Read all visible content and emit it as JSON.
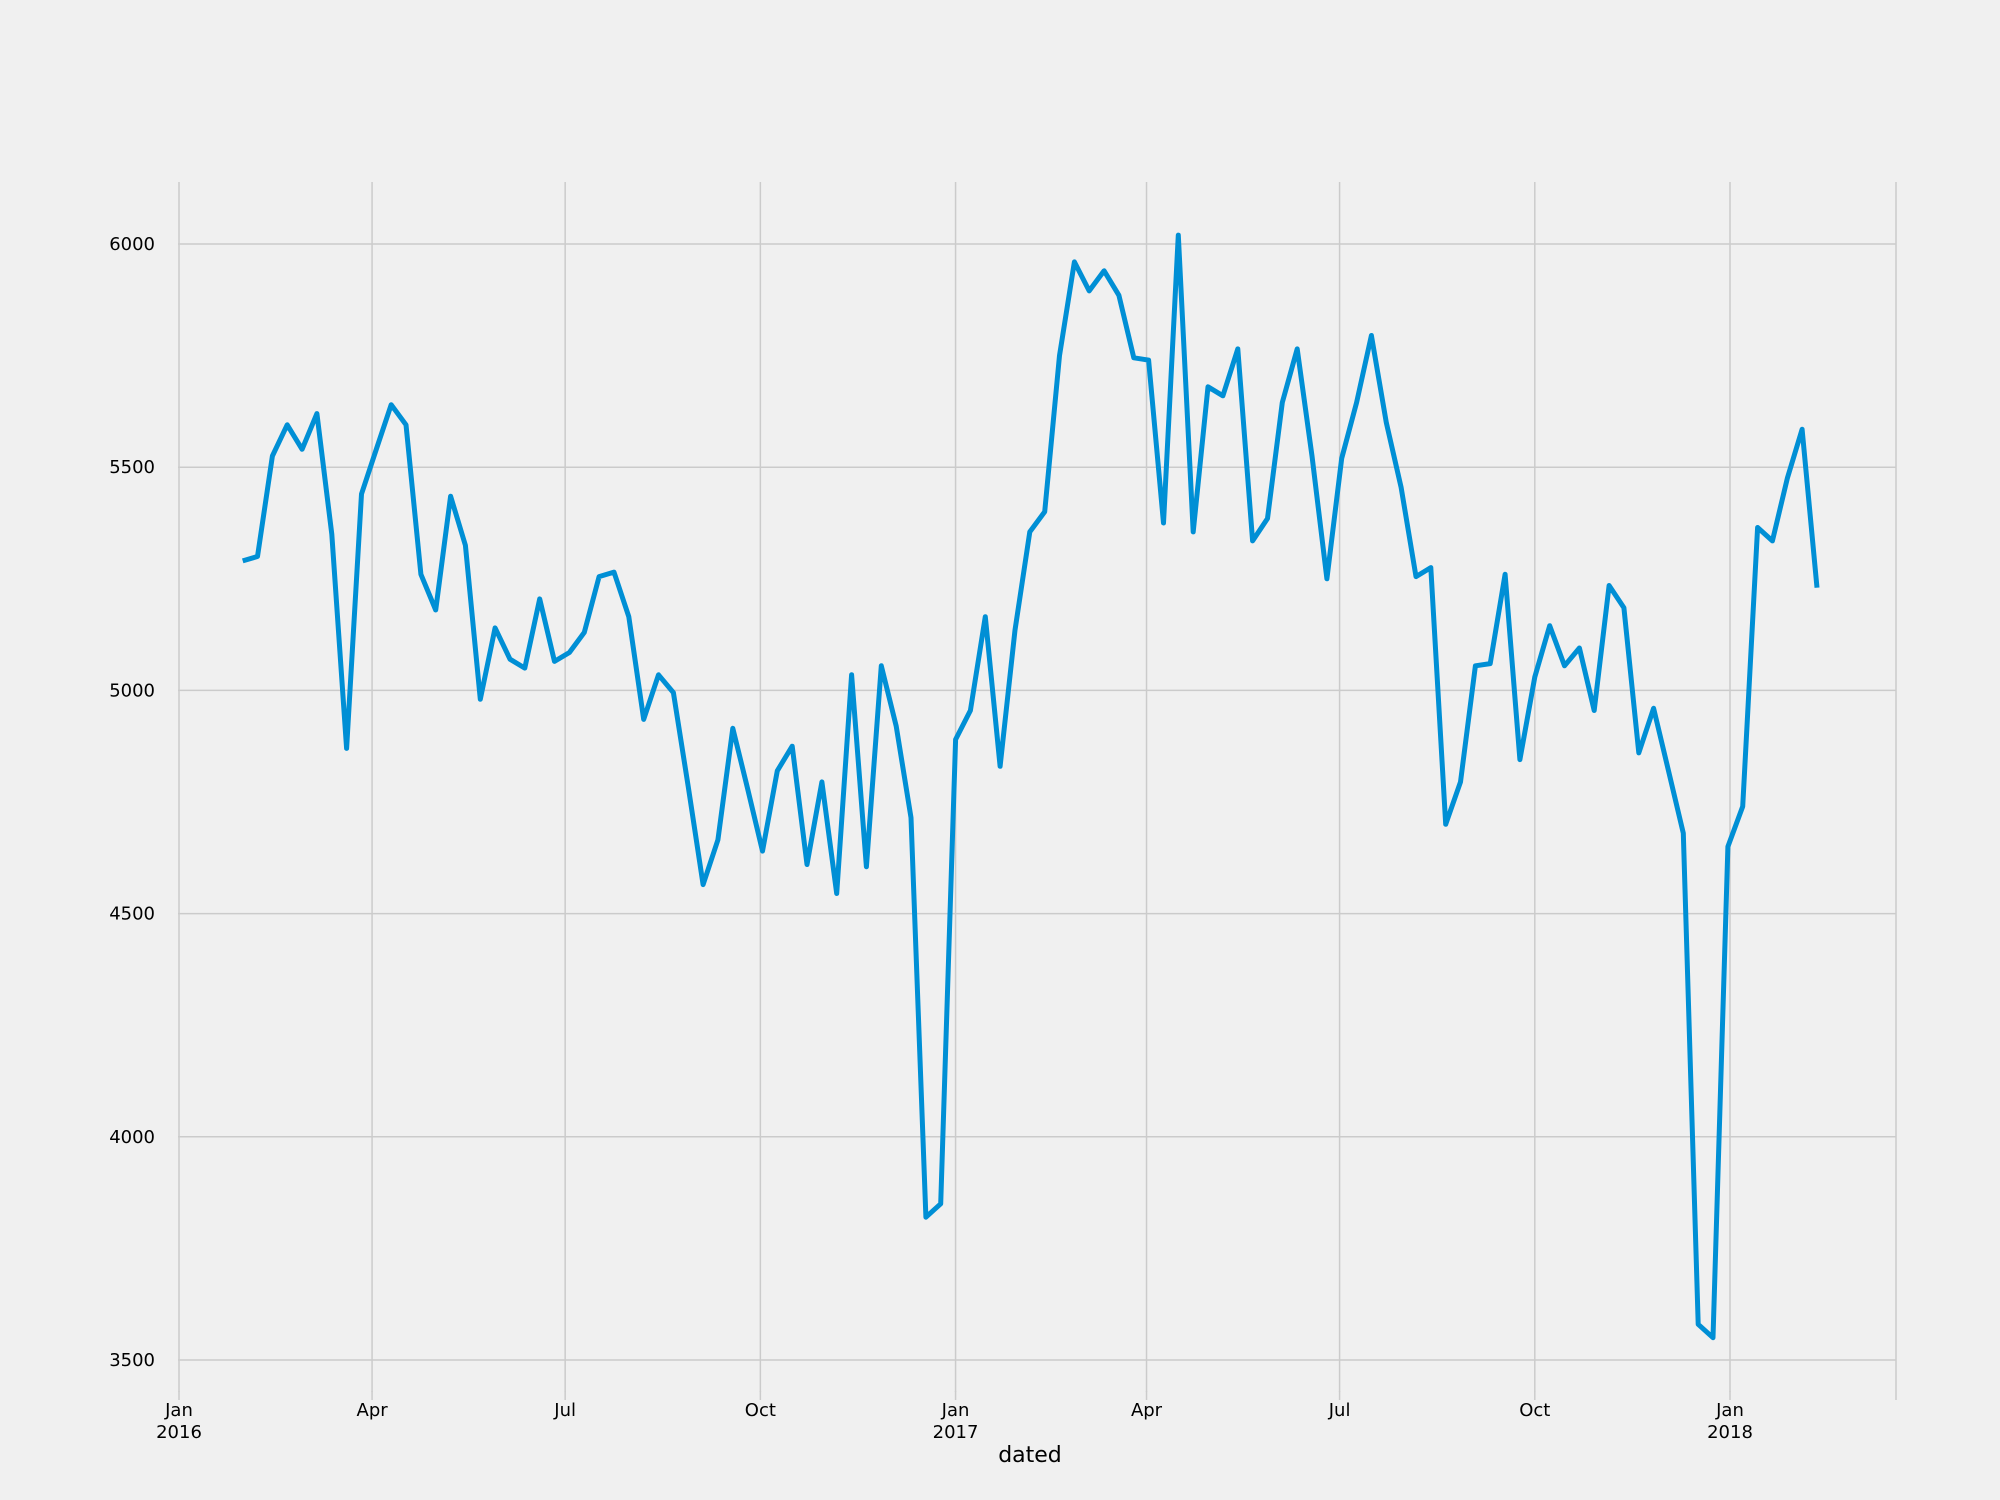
{
  "chart_data": {
    "type": "line",
    "xlabel": "dated",
    "ylabel": "",
    "title": "",
    "grid": true,
    "ylim": [
      3450,
      6140
    ],
    "xlim": [
      "2016-01-01",
      "2018-04-15"
    ],
    "y_ticks": [
      3500,
      4000,
      4500,
      5000,
      5500,
      6000
    ],
    "x_ticks": [
      {
        "date": "2016-01-01",
        "label": "Jan",
        "sub": "2016"
      },
      {
        "date": "2016-04-01",
        "label": "Apr",
        "sub": ""
      },
      {
        "date": "2016-07-01",
        "label": "Jul",
        "sub": ""
      },
      {
        "date": "2016-10-01",
        "label": "Oct",
        "sub": ""
      },
      {
        "date": "2017-01-01",
        "label": "Jan",
        "sub": "2017"
      },
      {
        "date": "2017-04-01",
        "label": "Apr",
        "sub": ""
      },
      {
        "date": "2017-07-01",
        "label": "Jul",
        "sub": ""
      },
      {
        "date": "2017-10-01",
        "label": "Oct",
        "sub": ""
      },
      {
        "date": "2018-01-01",
        "label": "Jan",
        "sub": "2018"
      }
    ],
    "series": [
      {
        "color": "#008fd5",
        "x": [
          "2016-01-31",
          "2016-02-07",
          "2016-02-14",
          "2016-02-21",
          "2016-02-28",
          "2016-03-06",
          "2016-03-13",
          "2016-03-20",
          "2016-03-27",
          "2016-04-03",
          "2016-04-10",
          "2016-04-17",
          "2016-04-24",
          "2016-05-01",
          "2016-05-08",
          "2016-05-15",
          "2016-05-22",
          "2016-05-29",
          "2016-06-05",
          "2016-06-12",
          "2016-06-19",
          "2016-06-26",
          "2016-07-03",
          "2016-07-10",
          "2016-07-17",
          "2016-07-24",
          "2016-07-31",
          "2016-08-07",
          "2016-08-14",
          "2016-08-21",
          "2016-08-28",
          "2016-09-04",
          "2016-09-11",
          "2016-09-18",
          "2016-09-25",
          "2016-10-02",
          "2016-10-09",
          "2016-10-16",
          "2016-10-23",
          "2016-10-30",
          "2016-11-06",
          "2016-11-13",
          "2016-11-20",
          "2016-11-27",
          "2016-12-04",
          "2016-12-11",
          "2016-12-18",
          "2016-12-25",
          "2017-01-01",
          "2017-01-08",
          "2017-01-15",
          "2017-01-22",
          "2017-01-29",
          "2017-02-05",
          "2017-02-12",
          "2017-02-19",
          "2017-02-26",
          "2017-03-05",
          "2017-03-12",
          "2017-03-19",
          "2017-03-26",
          "2017-04-02",
          "2017-04-09",
          "2017-04-16",
          "2017-04-23",
          "2017-04-30",
          "2017-05-07",
          "2017-05-14",
          "2017-05-21",
          "2017-05-28",
          "2017-06-04",
          "2017-06-11",
          "2017-06-18",
          "2017-06-25",
          "2017-07-02",
          "2017-07-09",
          "2017-07-16",
          "2017-07-23",
          "2017-07-30",
          "2017-08-06",
          "2017-08-13",
          "2017-08-20",
          "2017-08-27",
          "2017-09-03",
          "2017-09-10",
          "2017-09-17",
          "2017-09-24",
          "2017-10-01",
          "2017-10-08",
          "2017-10-15",
          "2017-10-22",
          "2017-10-29",
          "2017-11-05",
          "2017-11-12",
          "2017-11-19",
          "2017-11-26",
          "2017-12-03",
          "2017-12-10",
          "2017-12-17",
          "2017-12-24",
          "2017-12-31",
          "2018-01-07",
          "2018-01-14",
          "2018-01-21",
          "2018-01-28",
          "2018-02-04",
          "2018-02-11"
        ],
        "values": [
          5290,
          5300,
          5525,
          5595,
          5540,
          5620,
          5350,
          4870,
          5440,
          5540,
          5640,
          5595,
          5260,
          5180,
          5435,
          5325,
          4980,
          5140,
          5070,
          5050,
          5205,
          5065,
          5085,
          5130,
          5255,
          5265,
          5165,
          4935,
          5035,
          4995,
          4785,
          4565,
          4665,
          4915,
          4780,
          4640,
          4820,
          4875,
          4610,
          4795,
          4545,
          5035,
          4605,
          5055,
          4920,
          4715,
          3820,
          3850,
          4890,
          4955,
          5165,
          4830,
          5135,
          5355,
          5400,
          5750,
          5960,
          5895,
          5940,
          5885,
          5745,
          5740,
          5375,
          6020,
          5355,
          5680,
          5660,
          5765,
          5335,
          5385,
          5645,
          5765,
          5525,
          5250,
          5520,
          5645,
          5795,
          5600,
          5455,
          5255,
          5275,
          4700,
          4795,
          5055,
          5060,
          5260,
          4845,
          5030,
          5145,
          5055,
          5095,
          4955,
          5235,
          5185,
          4860,
          4960,
          4820,
          4680,
          3580,
          3550,
          4650,
          4740,
          5365,
          5335,
          5475,
          5585,
          5230
        ]
      }
    ]
  }
}
